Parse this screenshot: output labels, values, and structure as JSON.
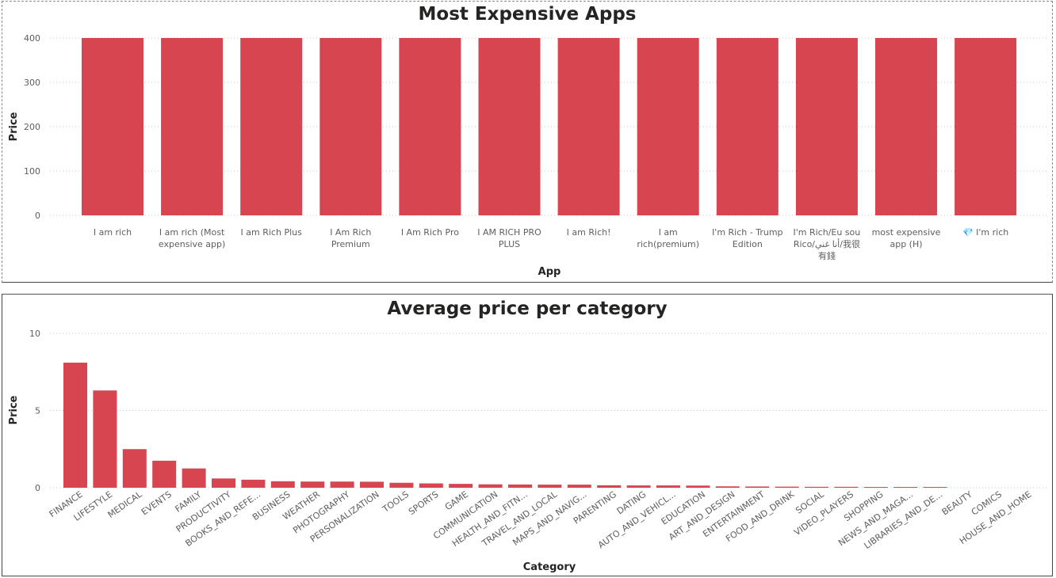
{
  "chart_data": [
    {
      "type": "bar",
      "title": "Most Expensive Apps",
      "xlabel": "App",
      "ylabel": "Price",
      "ylim": [
        0,
        400
      ],
      "yticks": [
        0,
        100,
        200,
        300,
        400
      ],
      "grid": true,
      "categories": [
        "I am rich",
        "I am rich (Most expensive app)",
        "I am Rich Plus",
        "I Am Rich Premium",
        "I Am Rich Pro",
        "I AM RICH PRO PLUS",
        "I am Rich!",
        "I am rich(premium)",
        "I'm Rich - Trump Edition",
        "I'm Rich/Eu sou Rico/أنا غني/我很有錢",
        "most expensive app (H)",
        "💎 I'm rich"
      ],
      "values": [
        399.99,
        399.99,
        399.99,
        399.99,
        399.99,
        399.99,
        399.99,
        399.99,
        400.0,
        399.99,
        399.99,
        399.99
      ],
      "color": "#d64550"
    },
    {
      "type": "bar",
      "title": "Average price per category",
      "xlabel": "Category",
      "ylabel": "Price",
      "ylim": [
        0,
        10
      ],
      "yticks": [
        0,
        5,
        10
      ],
      "grid": true,
      "categories": [
        "FINANCE",
        "LIFESTYLE",
        "MEDICAL",
        "EVENTS",
        "FAMILY",
        "PRODUCTIVITY",
        "BOOKS_AND_REFE...",
        "BUSINESS",
        "WEATHER",
        "PHOTOGRAPHY",
        "PERSONALIZATION",
        "TOOLS",
        "SPORTS",
        "GAME",
        "COMMUNICATION",
        "HEALTH_AND_FITN...",
        "TRAVEL_AND_LOCAL",
        "MAPS_AND_NAVIG...",
        "PARENTING",
        "DATING",
        "AUTO_AND_VEHICL...",
        "EDUCATION",
        "ART_AND_DESIGN",
        "ENTERTAINMENT",
        "FOOD_AND_DRINK",
        "SOCIAL",
        "VIDEO_PLAYERS",
        "SHOPPING",
        "NEWS_AND_MAGA...",
        "LIBRARIES_AND_DE...",
        "BEAUTY",
        "COMICS",
        "HOUSE_AND_HOME"
      ],
      "values": [
        8.1,
        6.3,
        2.5,
        1.75,
        1.25,
        0.6,
        0.52,
        0.42,
        0.4,
        0.4,
        0.39,
        0.32,
        0.28,
        0.25,
        0.22,
        0.21,
        0.2,
        0.2,
        0.16,
        0.15,
        0.15,
        0.14,
        0.09,
        0.08,
        0.07,
        0.06,
        0.06,
        0.05,
        0.05,
        0.05,
        0.0,
        0.0,
        0.0
      ],
      "color": "#d64550"
    }
  ]
}
